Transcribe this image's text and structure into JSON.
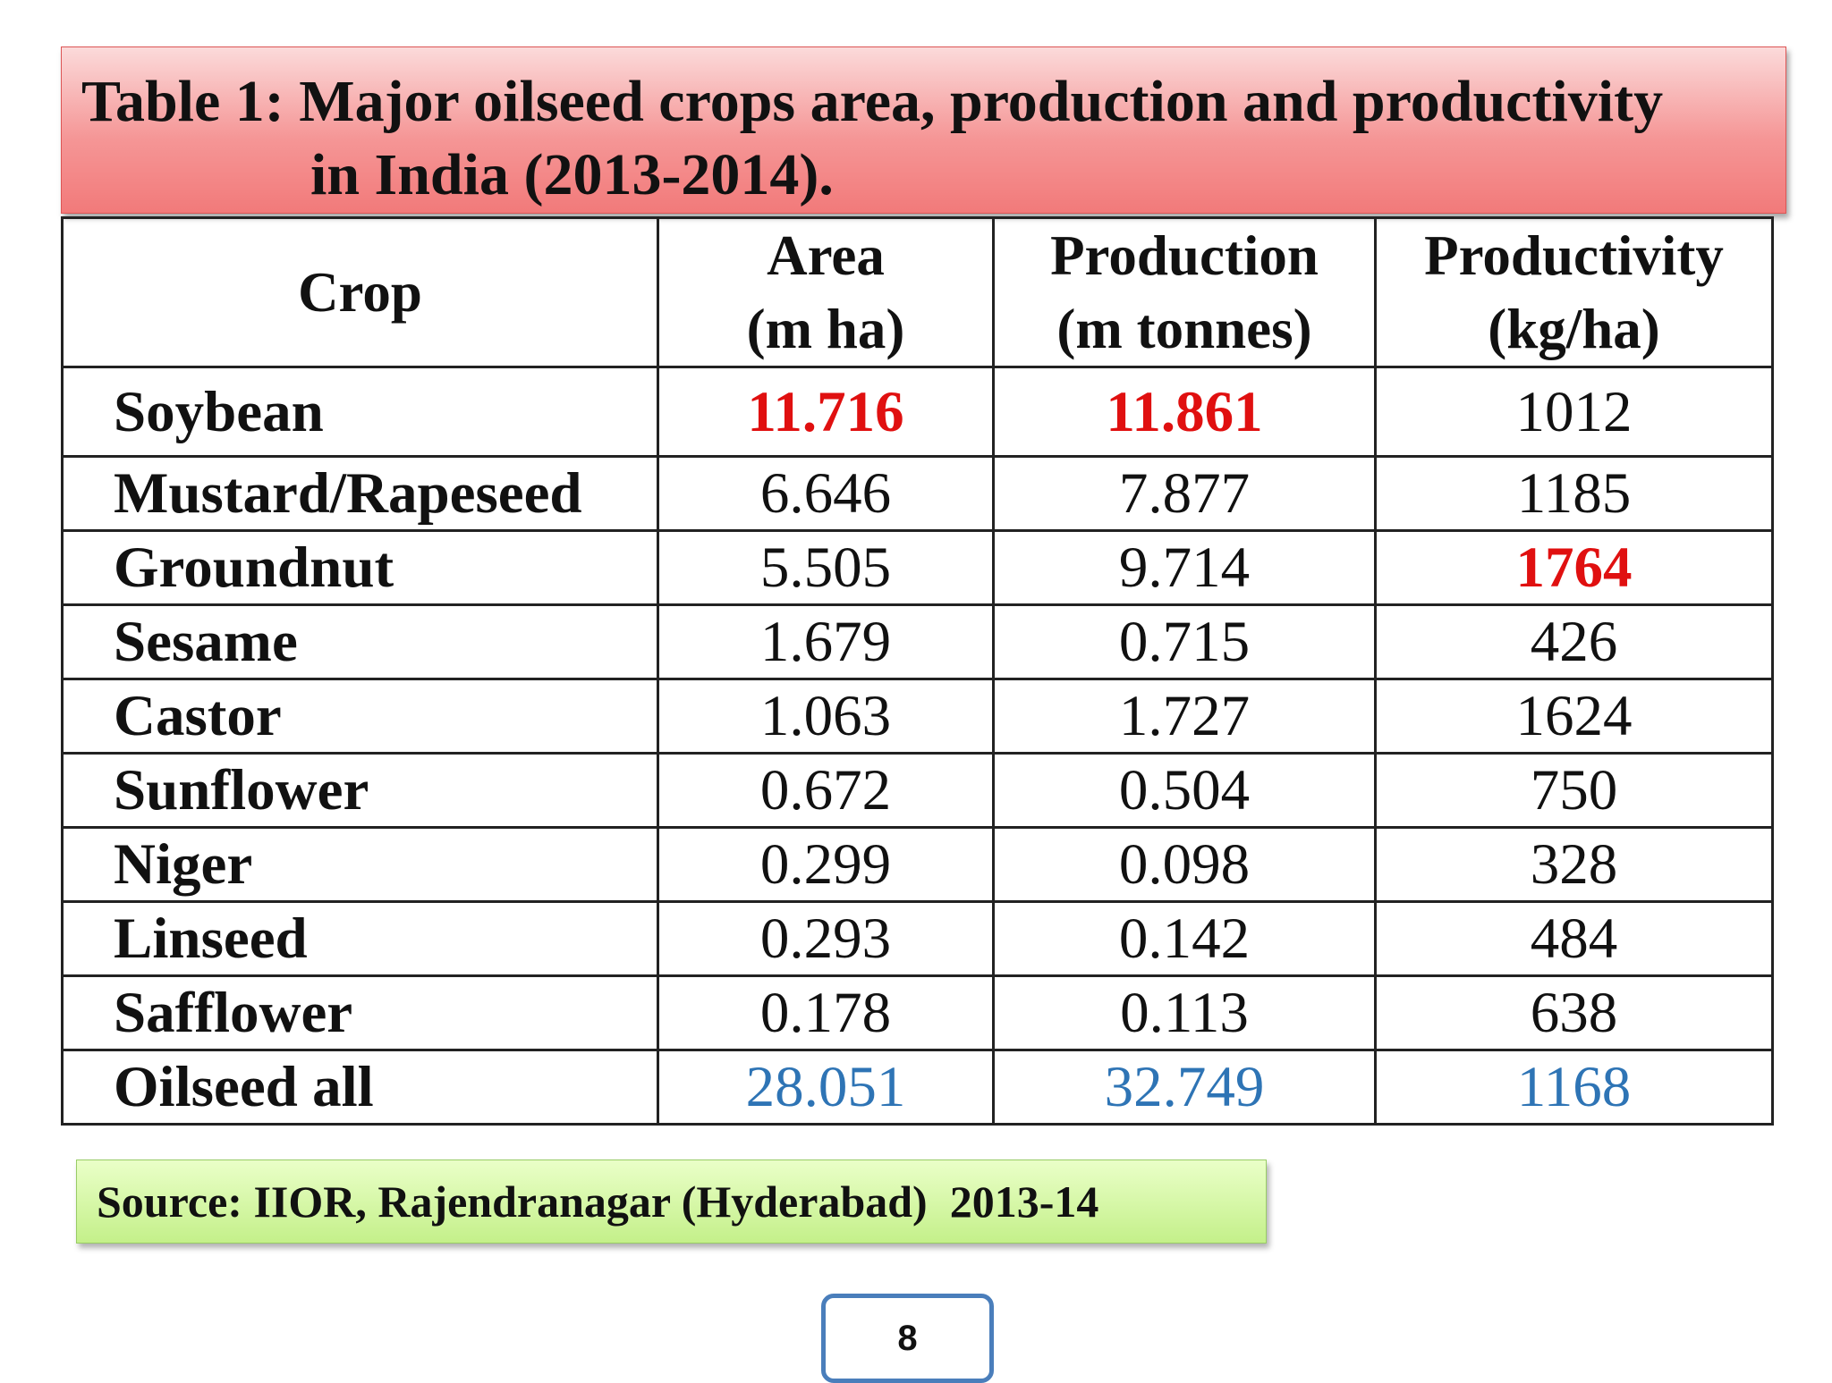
{
  "title": {
    "lines": [
      "Table 1: Major oilseed crops area, production and productivity",
      "in India (2013-2014)."
    ]
  },
  "table": {
    "header": [
      [
        "Crop"
      ],
      [
        "Area",
        "(m ha)"
      ],
      [
        "Production",
        "(m tonnes)"
      ],
      [
        "Productivity",
        "(kg/ha)"
      ]
    ],
    "rows": [
      [
        "Soybean",
        "11.716",
        "11.861",
        "1012"
      ],
      [
        "Mustard/Rapeseed",
        "6.646",
        "7.877",
        "1185"
      ],
      [
        "Groundnut",
        "5.505",
        "9.714",
        "1764"
      ],
      [
        "Sesame",
        "1.679",
        "0.715",
        "426"
      ],
      [
        "Castor",
        "1.063",
        "1.727",
        "1624"
      ],
      [
        "Sunflower",
        "0.672",
        "0.504",
        "750"
      ],
      [
        "Niger",
        "0.299",
        "0.098",
        "328"
      ],
      [
        "Linseed",
        "0.293",
        "0.142",
        "484"
      ],
      [
        "Safflower",
        "0.178",
        "0.113",
        "638"
      ],
      [
        "Oilseed all",
        "28.051",
        "32.749",
        "1168"
      ]
    ]
  },
  "source": "Source: IIOR, Rajendranagar (Hyderabad)  2013-14",
  "page_number": "8"
}
